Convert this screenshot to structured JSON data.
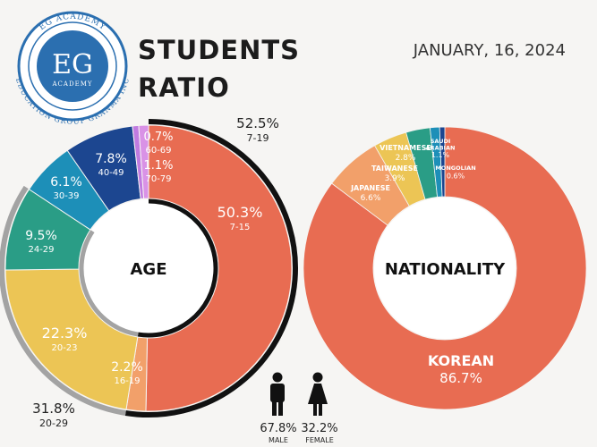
{
  "header": {
    "title_line1": "STUDENTS",
    "title_line2": "RATIO",
    "date": "JANUARY, 16, 2024"
  },
  "logo": {
    "initials": "EG",
    "word": "ACADEMY",
    "ring_top": "EG ACADEMY",
    "ring_bottom": "EDUCATION GROUP GRANMA INC"
  },
  "gender": {
    "male": {
      "value": "67.8%",
      "label": "MALE"
    },
    "female": {
      "value": "32.2%",
      "label": "FEMALE"
    }
  },
  "colors": {
    "background": "#f6f5f3",
    "korean": "#e86c52",
    "group_ring_black": "#111111",
    "group_ring_gray": "#a3a3a3"
  },
  "chart_data": [
    {
      "type": "pie",
      "title": "AGE",
      "slices": [
        {
          "percent": "50.3%",
          "range": "7-15",
          "value": 50.3,
          "color": "#e86c52"
        },
        {
          "percent": "2.2%",
          "range": "16-19",
          "value": 2.2,
          "color": "#f2a06a"
        },
        {
          "percent": "22.3%",
          "range": "20-23",
          "value": 22.3,
          "color": "#ecc555"
        },
        {
          "percent": "9.5%",
          "range": "24-29",
          "value": 9.5,
          "color": "#2a9d86"
        },
        {
          "percent": "6.1%",
          "range": "30-39",
          "value": 6.1,
          "color": "#1d8fb8"
        },
        {
          "percent": "7.8%",
          "range": "40-49",
          "value": 7.8,
          "color": "#1c4690"
        },
        {
          "percent": "0.7%",
          "range": "60-69",
          "value": 0.7,
          "color": "#c07be0"
        },
        {
          "percent": "1.1%",
          "range": "70-79",
          "value": 1.1,
          "color": "#d992e6"
        }
      ],
      "groups": [
        {
          "percent": "52.5%",
          "range": "7-19",
          "value": 52.5,
          "color": "#111111"
        },
        {
          "percent": "31.8%",
          "range": "20-29",
          "value": 31.8,
          "color": "#a3a3a3"
        }
      ]
    },
    {
      "type": "pie",
      "title": "NATIONALITY",
      "slices": [
        {
          "name": "KOREAN",
          "percent": "86.7%",
          "value": 86.7,
          "color": "#e86c52"
        },
        {
          "name": "JAPANESE",
          "percent": "6.6%",
          "value": 6.6,
          "color": "#f2a06a"
        },
        {
          "name": "TAIWANESE",
          "percent": "3.9%",
          "value": 3.9,
          "color": "#ecc555"
        },
        {
          "name": "VIETNAMESE",
          "percent": "2.8%",
          "value": 2.8,
          "color": "#2a9d86"
        },
        {
          "name": "SAUDI ARABIAN",
          "percent": "1.1%",
          "value": 1.1,
          "color": "#1d8fb8"
        },
        {
          "name": "MONGOLIAN",
          "percent": "0.6%",
          "value": 0.6,
          "color": "#1c4690"
        }
      ]
    }
  ]
}
